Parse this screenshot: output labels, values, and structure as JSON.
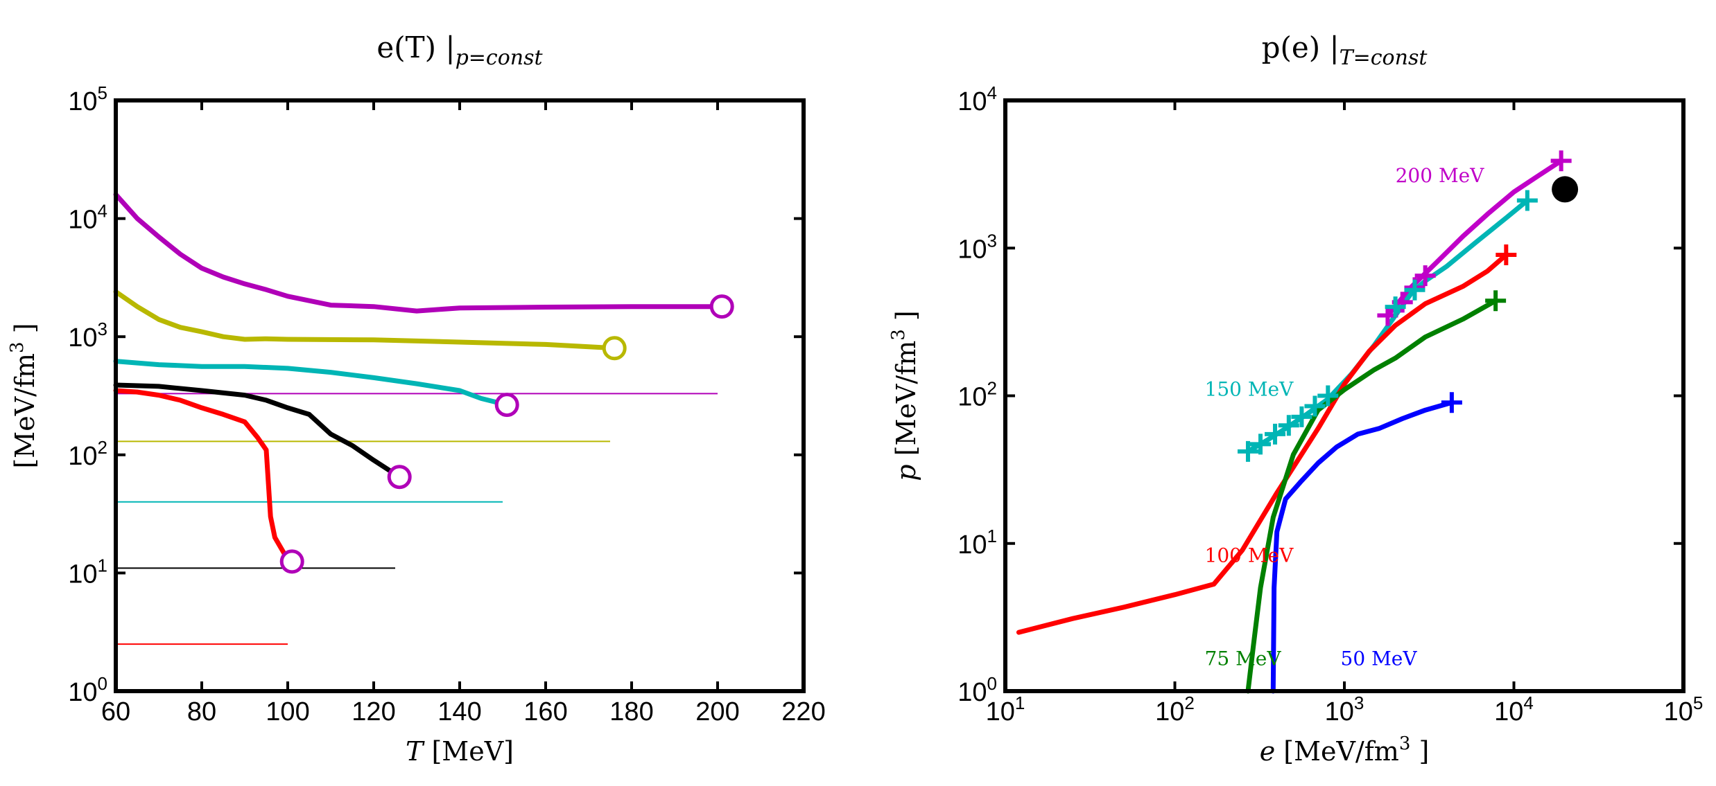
{
  "chart_data": [
    {
      "type": "line",
      "title": {
        "main": "e(T) |",
        "sub": "p=const"
      },
      "xlabel": {
        "var": "T",
        "unit": " [MeV]"
      },
      "ylabel": {
        "main": "[MeV/fm",
        "sup": "3",
        "end": " ]"
      },
      "xlim": [
        60,
        220
      ],
      "xscale": "linear",
      "ylim": [
        1,
        100000
      ],
      "yscale": "log",
      "xticks": [
        "60",
        "80",
        "100",
        "120",
        "140",
        "160",
        "180",
        "200",
        "220"
      ],
      "yticks": [
        {
          "base": "10",
          "exp": "0"
        },
        {
          "base": "10",
          "exp": "1"
        },
        {
          "base": "10",
          "exp": "2"
        },
        {
          "base": "10",
          "exp": "3"
        },
        {
          "base": "10",
          "exp": "4"
        },
        {
          "base": "10",
          "exp": "5"
        }
      ],
      "series": [
        {
          "name": "magenta",
          "color": "#b000b8",
          "x": [
            60,
            65,
            70,
            75,
            80,
            85,
            90,
            95,
            100,
            110,
            120,
            130,
            140,
            160,
            180,
            201
          ],
          "y": [
            16000,
            10000,
            7000,
            5000,
            3800,
            3200,
            2800,
            2500,
            2200,
            1850,
            1800,
            1650,
            1750,
            1780,
            1800,
            1800
          ]
        },
        {
          "name": "olive",
          "color": "#b8b800",
          "x": [
            60,
            65,
            70,
            75,
            80,
            85,
            90,
            95,
            100,
            120,
            140,
            160,
            176
          ],
          "y": [
            2400,
            1800,
            1400,
            1200,
            1100,
            1000,
            950,
            960,
            950,
            940,
            900,
            860,
            800
          ]
        },
        {
          "name": "cyan",
          "color": "#00b5b5",
          "x": [
            60,
            70,
            80,
            90,
            100,
            110,
            120,
            130,
            140,
            145,
            151
          ],
          "y": [
            620,
            580,
            560,
            560,
            540,
            500,
            450,
            400,
            350,
            300,
            265
          ]
        },
        {
          "name": "black",
          "color": "#000000",
          "x": [
            60,
            70,
            80,
            90,
            95,
            100,
            105,
            110,
            115,
            120,
            126
          ],
          "y": [
            390,
            380,
            350,
            320,
            290,
            250,
            220,
            150,
            120,
            90,
            65
          ]
        },
        {
          "name": "red",
          "color": "#ff0000",
          "x": [
            60,
            65,
            70,
            75,
            80,
            85,
            90,
            93,
            95,
            96,
            97,
            100,
            101
          ],
          "y": [
            350,
            340,
            320,
            290,
            250,
            220,
            190,
            140,
            110,
            30,
            20,
            13,
            12.5
          ]
        }
      ],
      "hlines": [
        {
          "y": 330,
          "xmax": 200,
          "color": "#b000b8"
        },
        {
          "y": 130,
          "xmax": 175,
          "color": "#b8b800"
        },
        {
          "y": 40,
          "xmax": 150,
          "color": "#00b5b5"
        },
        {
          "y": 11,
          "xmax": 125,
          "color": "#000000"
        },
        {
          "y": 2.5,
          "xmax": 100,
          "color": "#ff0000"
        }
      ],
      "endpoints": [
        {
          "x": 201,
          "y": 1800,
          "fill": "#ffffff",
          "stroke": "#b000b8"
        },
        {
          "x": 176,
          "y": 800,
          "fill": "#ffffff",
          "stroke": "#b8b800"
        },
        {
          "x": 151,
          "y": 265,
          "fill": "#ffffff",
          "stroke": "#b000b8"
        },
        {
          "x": 126,
          "y": 65,
          "fill": "#ffffff",
          "stroke": "#b000b8"
        },
        {
          "x": 101,
          "y": 12.5,
          "fill": "#ffffff",
          "stroke": "#b000b8"
        }
      ]
    },
    {
      "type": "line",
      "title": {
        "main": "p(e) |",
        "sub": "T=const"
      },
      "xlabel": {
        "var": "e",
        "unit": " [MeV/fm",
        "sup": "3",
        "end": " ]"
      },
      "ylabel": {
        "var": "p",
        "main": " [MeV/fm",
        "sup": "3",
        "end": " ]"
      },
      "xlim": [
        10,
        100000
      ],
      "xscale": "log",
      "ylim": [
        1,
        10000
      ],
      "yscale": "log",
      "xticks": [
        {
          "base": "10",
          "exp": "1"
        },
        {
          "base": "10",
          "exp": "2"
        },
        {
          "base": "10",
          "exp": "3"
        },
        {
          "base": "10",
          "exp": "4"
        },
        {
          "base": "10",
          "exp": "5"
        }
      ],
      "yticks": [
        {
          "base": "10",
          "exp": "0"
        },
        {
          "base": "10",
          "exp": "1"
        },
        {
          "base": "10",
          "exp": "2"
        },
        {
          "base": "10",
          "exp": "3"
        },
        {
          "base": "10",
          "exp": "4"
        }
      ],
      "series": [
        {
          "name": "200 MeV",
          "color": "#c000c8",
          "x": [
            1800,
            2500,
            3500,
            5000,
            7000,
            10000,
            14000,
            19000
          ],
          "y": [
            350,
            550,
            800,
            1200,
            1700,
            2400,
            3100,
            3900
          ]
        },
        {
          "name": "150 MeV",
          "color": "#00b5b5",
          "x": [
            270,
            350,
            450,
            600,
            800,
            1100,
            1500,
            2000,
            2500,
            3000,
            4000,
            6000,
            9000,
            12000
          ],
          "y": [
            42,
            50,
            60,
            75,
            95,
            140,
            220,
            350,
            500,
            600,
            750,
            1100,
            1600,
            2100
          ]
        },
        {
          "name": "100 MeV",
          "color": "#ff0000",
          "x": [
            12,
            25,
            50,
            100,
            170,
            250,
            400,
            700,
            1000,
            1400,
            2000,
            3000,
            5000,
            7000,
            9000
          ],
          "y": [
            2.5,
            3.1,
            3.7,
            4.5,
            5.3,
            9,
            22,
            60,
            120,
            200,
            300,
            420,
            550,
            700,
            900
          ]
        },
        {
          "name": "75 MeV",
          "color": "#008000",
          "x": [
            270,
            290,
            320,
            380,
            500,
            700,
            1000,
            1500,
            2000,
            3000,
            5000,
            7800
          ],
          "y": [
            1,
            2,
            5,
            15,
            40,
            80,
            110,
            150,
            180,
            250,
            330,
            440
          ]
        },
        {
          "name": "50 MeV",
          "color": "#0000ff",
          "x": [
            380,
            385,
            400,
            450,
            550,
            700,
            900,
            1200,
            1600,
            2200,
            3000,
            4300
          ],
          "y": [
            1,
            5,
            12,
            20,
            26,
            35,
            45,
            55,
            60,
            70,
            80,
            90
          ]
        }
      ],
      "plus_markers": [
        {
          "x": 19000,
          "y": 3900,
          "color": "#c000c8"
        },
        {
          "x": 12000,
          "y": 2100,
          "color": "#00b5b5"
        },
        {
          "x": 9000,
          "y": 900,
          "color": "#ff0000"
        },
        {
          "x": 7800,
          "y": 440,
          "color": "#008000"
        },
        {
          "x": 4300,
          "y": 90,
          "color": "#0000ff"
        },
        {
          "x": 1800,
          "y": 350,
          "color": "#c000c8"
        },
        {
          "x": 2200,
          "y": 430,
          "color": "#c000c8"
        },
        {
          "x": 2600,
          "y": 540,
          "color": "#c000c8"
        },
        {
          "x": 3000,
          "y": 650,
          "color": "#c000c8"
        },
        {
          "x": 270,
          "y": 42,
          "color": "#00b5b5"
        },
        {
          "x": 320,
          "y": 47,
          "color": "#00b5b5"
        },
        {
          "x": 390,
          "y": 55,
          "color": "#00b5b5"
        },
        {
          "x": 470,
          "y": 63,
          "color": "#00b5b5"
        },
        {
          "x": 560,
          "y": 72,
          "color": "#00b5b5"
        },
        {
          "x": 670,
          "y": 85,
          "color": "#00b5b5"
        },
        {
          "x": 800,
          "y": 100,
          "color": "#00b5b5"
        },
        {
          "x": 2000,
          "y": 400,
          "color": "#00b5b5"
        },
        {
          "x": 2600,
          "y": 520,
          "color": "#00b5b5"
        }
      ],
      "point": {
        "x": 20000,
        "y": 2500,
        "color": "#000000"
      },
      "annotations": [
        {
          "text": "200 MeV",
          "x": 2000,
          "y": 2800,
          "color": "#c000c8"
        },
        {
          "text": "150 MeV",
          "x": 150,
          "y": 100,
          "color": "#00b5b5"
        },
        {
          "text": "100 MeV",
          "x": 150,
          "y": 7.5,
          "color": "#ff0000"
        },
        {
          "text": "75 MeV",
          "x": 150,
          "y": 1.5,
          "color": "#008000"
        },
        {
          "text": "50 MeV",
          "x": 950,
          "y": 1.5,
          "color": "#0000ff"
        }
      ]
    }
  ]
}
